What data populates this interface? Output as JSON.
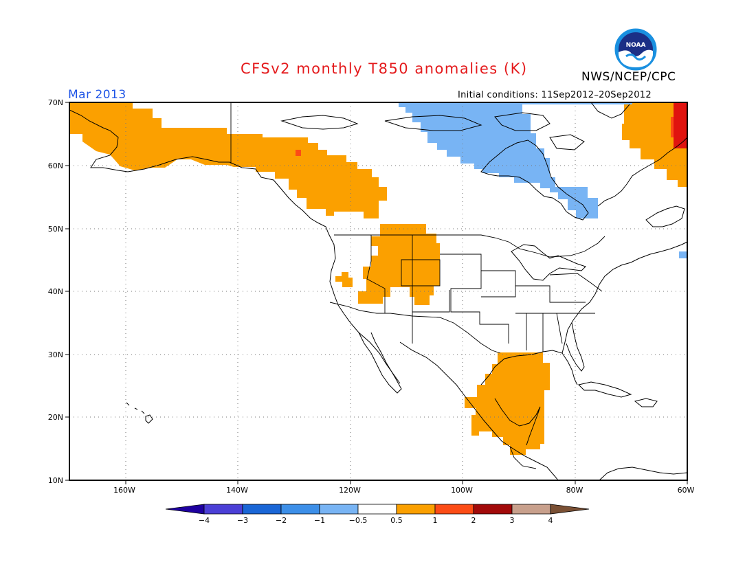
{
  "header": {
    "title": "CFSv2 monthly T850 anomalies (K)",
    "agency": "NWS/NCEP/CPC",
    "logo_text": "NOAA",
    "period": "Mar 2013",
    "initial_conditions": "Initial conditions: 11Sep2012–20Sep2012"
  },
  "colors": {
    "title": "#e41a1c",
    "period": "#1f55e6",
    "neg_weak": "#78b4f4",
    "pos_weak": "#fba000",
    "pos_mid": "#fc4c16",
    "pos_strong": "#e0130f"
  },
  "map": {
    "region": "North America",
    "lon_range": [
      -170,
      -60
    ],
    "lat_range": [
      10,
      70
    ],
    "lat_labels": [
      "70N",
      "60N",
      "50N",
      "40N",
      "30N",
      "20N",
      "10N"
    ],
    "lon_labels": [
      "160W",
      "140W",
      "120W",
      "100W",
      "80W",
      "60W"
    ]
  },
  "anomaly_regions": [
    {
      "name": "Alaska and northwest Canada",
      "category": "0.5 to 1"
    },
    {
      "name": "Western United States interior",
      "category": "0.5 to 1"
    },
    {
      "name": "Mexico and Central America",
      "category": "0.5 to 1"
    },
    {
      "name": "Northeast Canada",
      "category": "0.5 to 1"
    },
    {
      "name": "Far northeast Canada edge",
      "category": "2 to 3"
    },
    {
      "name": "Hudson Bay region",
      "category": "-1 to -0.5"
    }
  ],
  "legend": {
    "labels": [
      "−4",
      "−3",
      "−2",
      "−1",
      "−0.5",
      "0.5",
      "1",
      "2",
      "3",
      "4"
    ],
    "colors": [
      "#1e00a0",
      "#4b3fd6",
      "#1a66d6",
      "#3d8fe8",
      "#78b4f4",
      "#ffffff",
      "#fba000",
      "#fc4c16",
      "#a20a0a",
      "#c8a08c",
      "#7a5034"
    ]
  }
}
